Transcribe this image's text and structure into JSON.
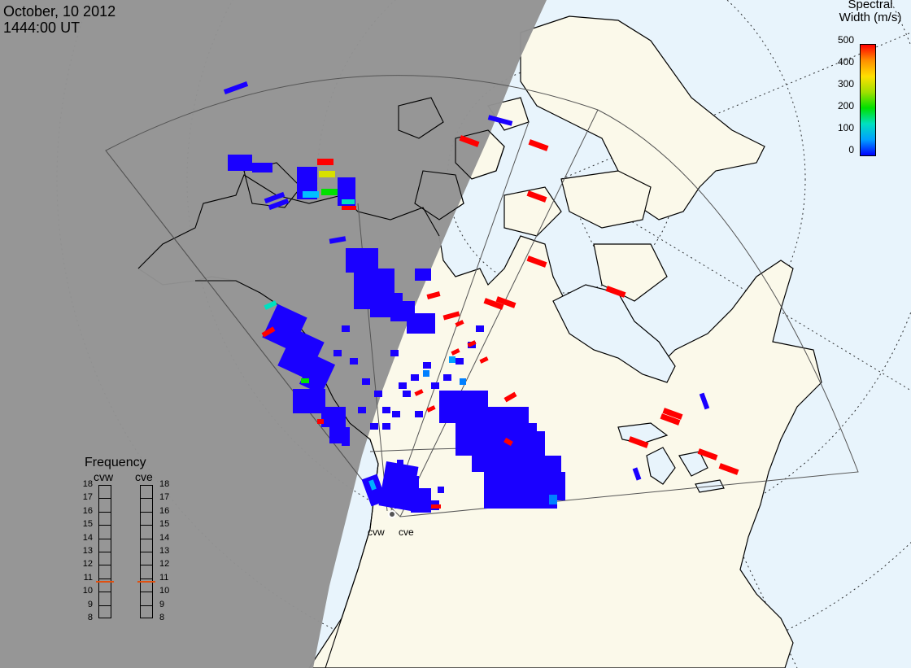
{
  "header": {
    "date": "October, 10 2012",
    "time": "1444:00 UT"
  },
  "colorbar": {
    "title_line1": "Spectral",
    "title_line2": "Width (m/s)",
    "ticks": [
      "500",
      "400",
      "300",
      "200",
      "100",
      "0"
    ],
    "colors": [
      "#0000ff",
      "#00a0ff",
      "#00e0c0",
      "#00e000",
      "#a0e000",
      "#ffe000",
      "#ff9000",
      "#ff0000"
    ]
  },
  "frequency": {
    "title": "Frequency",
    "left_station": "cvw",
    "right_station": "cve",
    "ticks": [
      "18",
      "17",
      "16",
      "15",
      "14",
      "13",
      "12",
      "11",
      "10",
      "9",
      "8"
    ],
    "cvw_mhz": 10.75,
    "cve_mhz": 10.75
  },
  "radar_sites": {
    "west": "cvw",
    "east": "cve"
  },
  "colors": {
    "night": "#939393",
    "land": "#fbf9ea",
    "ocean": "#e8f4fc",
    "low_width": "#1a00ff",
    "high_width": "#ff0000",
    "indicator": "#e05010"
  }
}
